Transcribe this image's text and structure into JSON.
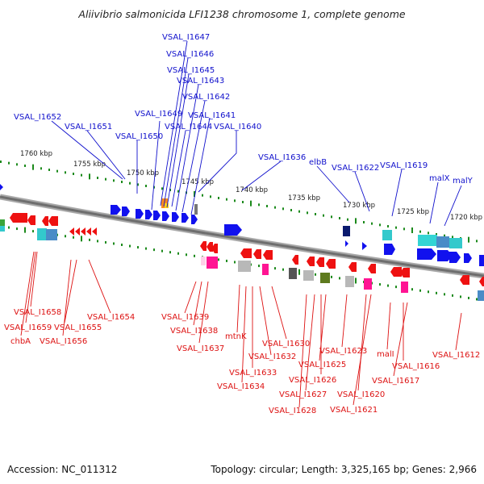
{
  "title": "Aliivibrio salmonicida LFI1238 chromosome 1, complete genome",
  "footer": {
    "accession": "Accession: NC_011312",
    "summary": "Topology: circular; Length: 3,325,165 bp; Genes: 2,966"
  },
  "colors": {
    "forward_gene": "#1111ee",
    "reverse_gene": "#ee1111",
    "top_label": "#1010cc",
    "bottom_label": "#dd1111",
    "tick": "#1c8a1c",
    "backbone": "#808080"
  },
  "scale_ticks": [
    {
      "label": "1760 kbp"
    },
    {
      "label": "1755 kbp"
    },
    {
      "label": "1750 kbp"
    },
    {
      "label": "1745 kbp"
    },
    {
      "label": "1740 kbp"
    },
    {
      "label": "1735 kbp"
    },
    {
      "label": "1730 kbp"
    },
    {
      "label": "1725 kbp"
    },
    {
      "label": "1720 kbp"
    }
  ],
  "top_labels": [
    "VSAL_I1647",
    "VSAL_I1646",
    "VSAL_I1645",
    "VSAL_I1643",
    "VSAL_I1642",
    "VSAL_I1652",
    "VSAL_I1649",
    "VSAL_I1641",
    "VSAL_I1651",
    "VSAL_I1644",
    "VSAL_I1640",
    "VSAL_I1650",
    "VSAL_I1636",
    "elbB",
    "VSAL_I1622",
    "VSAL_I1619",
    "malX",
    "malY"
  ],
  "bottom_labels": [
    "VSAL_I1658",
    "VSAL_I1659",
    "chbA",
    "VSAL_I1655",
    "VSAL_I1656",
    "VSAL_I1654",
    "VSAL_I1639",
    "VSAL_I1638",
    "VSAL_I1637",
    "mtnK",
    "VSAL_I1630",
    "VSAL_I1632",
    "VSAL_I1633",
    "VSAL_I1634",
    "VSAL_I1625",
    "VSAL_I1626",
    "VSAL_I1627",
    "VSAL_I1628",
    "VSAL_I1623",
    "VSAL_I1620",
    "VSAL_I1621",
    "malI",
    "VSAL_I1616",
    "VSAL_I1617",
    "VSAL_I1612"
  ]
}
